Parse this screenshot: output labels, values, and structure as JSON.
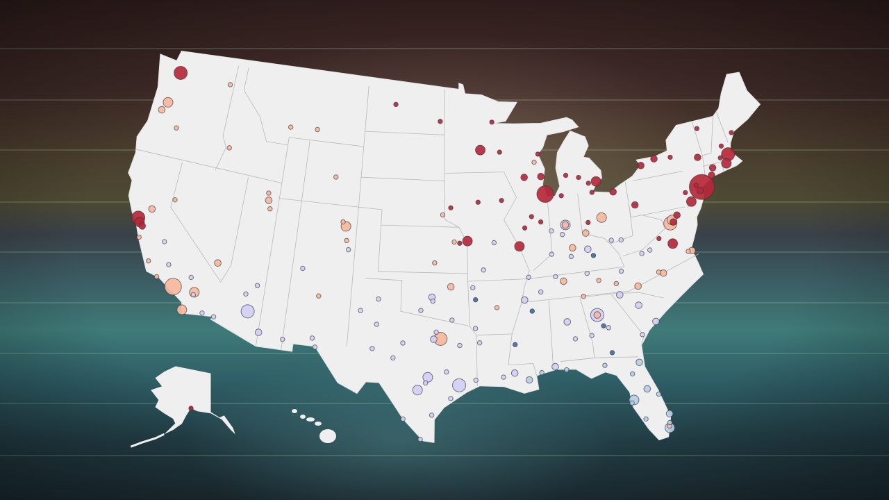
{
  "map": {
    "type": "proportional-symbol map",
    "region": "United States",
    "background_color": "#3f7b79",
    "land_color": "#efefef",
    "border_color": "#b8b8b8",
    "categories": [
      {
        "id": 0,
        "color": "#b5283a"
      },
      {
        "id": 1,
        "color": "#f7b99c"
      },
      {
        "id": 2,
        "color": "#d2d0f5"
      },
      {
        "id": 3,
        "color": "#b4cfe6"
      },
      {
        "id": 4,
        "color": "#3f6fa6"
      }
    ],
    "points": [
      [
        -122.3,
        47.6,
        4,
        0
      ],
      [
        -122.4,
        37.8,
        4,
        0
      ],
      [
        -122.2,
        37.55,
        3,
        0
      ],
      [
        -121.9,
        37.35,
        2,
        0
      ],
      [
        -87.65,
        41.88,
        5,
        0
      ],
      [
        -74.0,
        40.72,
        6,
        0
      ],
      [
        -71.06,
        42.36,
        4,
        0
      ],
      [
        -93.27,
        44.98,
        3,
        0
      ],
      [
        -83.05,
        42.33,
        3,
        0
      ],
      [
        -94.58,
        39.1,
        3,
        0
      ],
      [
        -90.2,
        38.63,
        3,
        0
      ],
      [
        -87.9,
        43.04,
        2,
        0
      ],
      [
        -75.16,
        39.95,
        3,
        0
      ],
      [
        -77.03,
        38.9,
        2,
        0
      ],
      [
        -71.41,
        41.82,
        3,
        0
      ],
      [
        -79.99,
        40.44,
        2,
        0
      ],
      [
        -78.88,
        42.89,
        2,
        0
      ],
      [
        -81.69,
        41.5,
        2,
        0
      ],
      [
        -77.43,
        37.54,
        3,
        0
      ],
      [
        -89.4,
        43.07,
        2,
        0
      ],
      [
        -72.68,
        41.76,
        2,
        0
      ],
      [
        -73.76,
        42.65,
        2,
        0
      ],
      [
        -77.61,
        43.16,
        2,
        0
      ],
      [
        -70.26,
        43.66,
        1,
        0
      ],
      [
        -101.3,
        47.9,
        1,
        0
      ],
      [
        -93.6,
        41.6,
        1,
        0
      ],
      [
        -91.53,
        41.66,
        1,
        0
      ],
      [
        -92.1,
        46.78,
        1,
        0
      ],
      [
        -89.0,
        40.5,
        1,
        0
      ],
      [
        -88.24,
        40.11,
        1,
        0
      ],
      [
        -89.65,
        39.8,
        1,
        0
      ],
      [
        -95.24,
        38.97,
        1,
        0
      ],
      [
        -85.67,
        42.96,
        1,
        0
      ],
      [
        -84.55,
        42.73,
        1,
        0
      ],
      [
        -83.54,
        41.66,
        1,
        0
      ],
      [
        -83.74,
        42.28,
        1,
        0
      ],
      [
        -76.15,
        43.05,
        1,
        0
      ],
      [
        -74.2,
        40.52,
        2,
        0
      ],
      [
        -74.45,
        40.9,
        1,
        0
      ],
      [
        -76.61,
        39.29,
        2,
        0
      ],
      [
        -72.93,
        41.31,
        2,
        0
      ],
      [
        -71.8,
        42.26,
        1,
        0
      ],
      [
        -71.46,
        42.99,
        1,
        0
      ],
      [
        -73.21,
        44.48,
        1,
        0
      ],
      [
        -88.0,
        44.51,
        1,
        0
      ],
      [
        -91.5,
        44.8,
        1,
        0
      ],
      [
        -78.48,
        38.03,
        1,
        0
      ],
      [
        -96.0,
        41.26,
        1,
        0
      ],
      [
        -97.0,
        46.88,
        1,
        0
      ],
      [
        -84.2,
        39.76,
        1,
        0
      ],
      [
        -86.25,
        41.68,
        1,
        0
      ],
      [
        -75.5,
        40.6,
        1,
        0
      ],
      [
        -118.24,
        34.05,
        5,
        1
      ],
      [
        -117.16,
        32.72,
        3,
        1
      ],
      [
        -116.5,
        34.0,
        3,
        1
      ],
      [
        -115.14,
        36.17,
        2,
        1
      ],
      [
        -121.49,
        38.58,
        2,
        1
      ],
      [
        -122.68,
        45.52,
        3,
        1
      ],
      [
        -111.89,
        40.76,
        2,
        1
      ],
      [
        -104.99,
        39.74,
        3,
        1
      ],
      [
        -105.27,
        40.01,
        1,
        1
      ],
      [
        -104.82,
        38.83,
        1,
        1
      ],
      [
        -83.0,
        39.96,
        3,
        1
      ],
      [
        -84.51,
        39.1,
        2,
        1
      ],
      [
        -85.76,
        38.25,
        2,
        1
      ],
      [
        -77.3,
        38.85,
        4,
        1
      ],
      [
        -77.1,
        39.05,
        3,
        1
      ],
      [
        -75.98,
        36.85,
        2,
        1
      ],
      [
        -86.78,
        36.16,
        2,
        1
      ],
      [
        -96.8,
        32.78,
        4,
        1
      ],
      [
        -95.99,
        36.15,
        2,
        1
      ],
      [
        -106.65,
        35.08,
        1,
        1
      ],
      [
        -123.05,
        44.94,
        2,
        1
      ],
      [
        -121.3,
        44.06,
        1,
        1
      ],
      [
        -119.8,
        39.53,
        1,
        1
      ],
      [
        -120.66,
        35.28,
        1,
        1
      ],
      [
        -119.7,
        34.42,
        1,
        1
      ],
      [
        -121.9,
        36.6,
        1,
        1
      ],
      [
        -117.4,
        47.66,
        1,
        1
      ],
      [
        -116.2,
        43.62,
        1,
        1
      ],
      [
        -108.5,
        45.78,
        1,
        1
      ],
      [
        -111.0,
        45.68,
        1,
        1
      ],
      [
        -106.3,
        42.85,
        1,
        1
      ],
      [
        -112.0,
        41.22,
        1,
        1
      ],
      [
        -111.66,
        40.23,
        1,
        1
      ],
      [
        -86.16,
        39.77,
        2,
        1
      ],
      [
        -84.39,
        33.75,
        2,
        1
      ],
      [
        -80.84,
        35.23,
        2,
        1
      ],
      [
        -78.64,
        35.78,
        2,
        1
      ],
      [
        -79.0,
        35.9,
        1,
        1
      ],
      [
        -82.55,
        35.6,
        1,
        1
      ],
      [
        -96.7,
        40.8,
        1,
        1
      ],
      [
        -97.34,
        37.69,
        1,
        1
      ],
      [
        -92.3,
        34.75,
        1,
        1
      ],
      [
        -95.7,
        39.05,
        1,
        1
      ],
      [
        -88.4,
        44.0,
        1,
        1
      ],
      [
        -85.3,
        35.05,
        1,
        1
      ],
      [
        -83.92,
        35.96,
        1,
        1
      ],
      [
        -76.3,
        36.85,
        1,
        1
      ],
      [
        -80.2,
        25.9,
        1,
        1
      ],
      [
        -112.07,
        33.45,
        4,
        2
      ],
      [
        -110.97,
        32.22,
        2,
        2
      ],
      [
        -84.39,
        33.75,
        4,
        2
      ],
      [
        -97.74,
        30.27,
        3,
        2
      ],
      [
        -95.37,
        29.76,
        4,
        2
      ],
      [
        -98.49,
        29.42,
        3,
        2
      ],
      [
        -97.52,
        35.47,
        2,
        2
      ],
      [
        -86.16,
        39.77,
        3,
        2
      ],
      [
        -90.05,
        35.15,
        2,
        2
      ],
      [
        -86.8,
        33.52,
        2,
        2
      ],
      [
        -81.03,
        34.0,
        2,
        2
      ],
      [
        -82.4,
        34.85,
        2,
        2
      ],
      [
        -79.9,
        32.78,
        2,
        2
      ],
      [
        -81.1,
        32.08,
        1,
        2
      ],
      [
        -83.63,
        32.84,
        1,
        2
      ],
      [
        -85.0,
        32.47,
        1,
        2
      ],
      [
        -86.3,
        32.37,
        1,
        2
      ],
      [
        -88.04,
        30.69,
        2,
        2
      ],
      [
        -91.14,
        30.45,
        2,
        2
      ],
      [
        -93.75,
        32.5,
        1,
        2
      ],
      [
        -92.0,
        30.22,
        1,
        2
      ],
      [
        -94.1,
        30.08,
        1,
        2
      ],
      [
        -97.4,
        27.8,
        1,
        2
      ],
      [
        -98.2,
        26.2,
        1,
        2
      ],
      [
        -101.85,
        33.58,
        1,
        2
      ],
      [
        -101.83,
        35.22,
        1,
        2
      ],
      [
        -102.08,
        31.99,
        1,
        2
      ],
      [
        -106.49,
        31.76,
        1,
        2
      ],
      [
        -99.73,
        32.45,
        1,
        2
      ],
      [
        -100.44,
        31.46,
        1,
        2
      ],
      [
        -97.33,
        32.75,
        2,
        2
      ],
      [
        -97.14,
        33.21,
        1,
        2
      ],
      [
        -94.2,
        36.08,
        1,
        2
      ],
      [
        -93.29,
        37.21,
        1,
        2
      ],
      [
        -92.33,
        38.95,
        1,
        2
      ],
      [
        -98.39,
        34.6,
        1,
        2
      ],
      [
        -97.44,
        35.22,
        1,
        2
      ],
      [
        -95.9,
        34.0,
        1,
        2
      ],
      [
        -89.6,
        36.6,
        1,
        2
      ],
      [
        -88.7,
        35.6,
        1,
        2
      ],
      [
        -87.4,
        36.5,
        1,
        2
      ],
      [
        -85.95,
        37.7,
        1,
        2
      ],
      [
        -84.5,
        38.05,
        2,
        2
      ],
      [
        -82.45,
        38.42,
        1,
        2
      ],
      [
        -81.63,
        38.35,
        1,
        2
      ],
      [
        -80.1,
        37.27,
        1,
        2
      ],
      [
        -79.4,
        37.4,
        1,
        2
      ],
      [
        -82.0,
        36.35,
        1,
        2
      ],
      [
        -86.5,
        39.17,
        1,
        2
      ],
      [
        -87.55,
        37.97,
        1,
        2
      ],
      [
        -87.4,
        39.47,
        1,
        2
      ],
      [
        -84.8,
        36.5,
        1,
        2
      ],
      [
        -116.54,
        33.83,
        1,
        2
      ],
      [
        -117.0,
        34.9,
        1,
        2
      ],
      [
        -115.56,
        32.79,
        1,
        2
      ],
      [
        -114.62,
        32.7,
        1,
        2
      ],
      [
        -112.45,
        34.54,
        1,
        2
      ],
      [
        -111.65,
        35.2,
        1,
        2
      ],
      [
        -109.05,
        32.0,
        1,
        2
      ],
      [
        -106.78,
        32.32,
        1,
        2
      ],
      [
        -108.2,
        36.73,
        1,
        2
      ],
      [
        -119.0,
        35.37,
        1,
        2
      ],
      [
        -119.79,
        36.74,
        1,
        2
      ],
      [
        -104.6,
        38.25,
        1,
        2
      ],
      [
        -103.2,
        34.4,
        1,
        2
      ],
      [
        -96.0,
        28.9,
        1,
        2
      ],
      [
        -99.5,
        27.5,
        1,
        2
      ],
      [
        -97.9,
        29.9,
        1,
        2
      ],
      [
        -96.33,
        30.63,
        1,
        2
      ],
      [
        -95.3,
        32.35,
        1,
        2
      ],
      [
        -94.05,
        33.44,
        1,
        2
      ],
      [
        -80.2,
        25.78,
        3,
        3
      ],
      [
        -82.46,
        27.95,
        3,
        3
      ],
      [
        -81.38,
        28.54,
        2,
        3
      ],
      [
        -81.66,
        30.33,
        2,
        3
      ],
      [
        -90.07,
        29.95,
        2,
        3
      ],
      [
        -80.05,
        26.7,
        2,
        3
      ],
      [
        -81.8,
        26.6,
        1,
        3
      ],
      [
        -82.3,
        29.65,
        1,
        3
      ],
      [
        -84.28,
        30.44,
        1,
        3
      ],
      [
        -87.2,
        30.42,
        1,
        3
      ],
      [
        -89.09,
        30.37,
        1,
        3
      ],
      [
        -80.6,
        28.08,
        1,
        3
      ],
      [
        -82.64,
        27.77,
        1,
        3
      ],
      [
        -80.14,
        26.12,
        1,
        3
      ],
      [
        -84.0,
        33.0,
        1,
        4
      ],
      [
        -89.5,
        34.4,
        1,
        4
      ],
      [
        -84.1,
        37.6,
        1,
        4
      ],
      [
        -83.6,
        31.2,
        1,
        4
      ],
      [
        -91.0,
        32.3,
        1,
        4
      ],
      [
        -94.0,
        35.3,
        1,
        4
      ]
    ],
    "alaska_points": [
      [
        -149.9,
        61.2,
        1,
        0
      ]
    ]
  }
}
